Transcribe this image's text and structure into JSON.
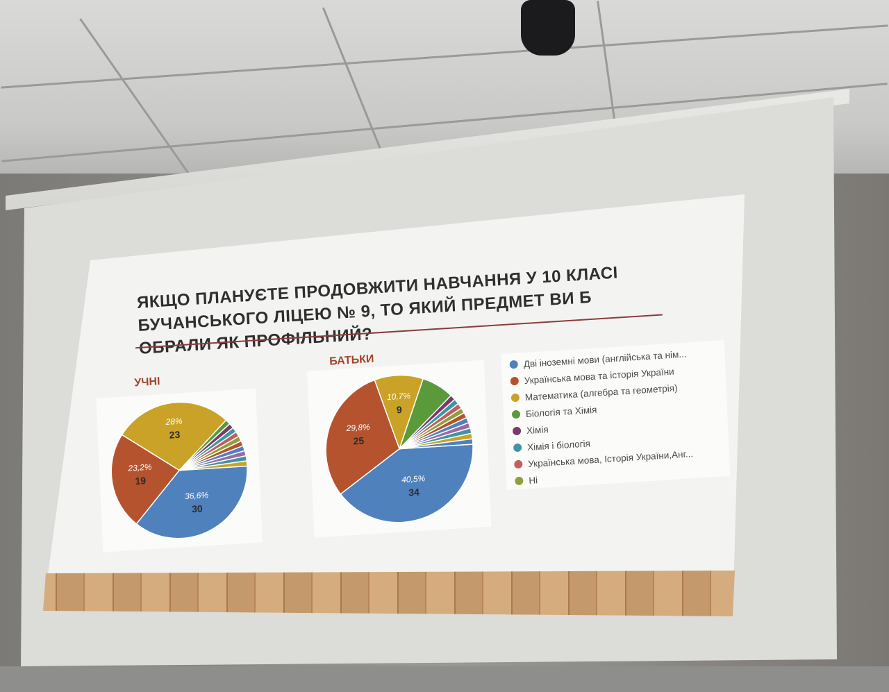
{
  "slide": {
    "title": "ЯКЩО ПЛАНУЄТЕ ПРОДОВЖИТИ НАВЧАННЯ У 10 КЛАСІ БУЧАНСЬКОГО ЛІЦЕЮ № 9, ТО ЯКИЙ ПРЕДМЕТ ВИ Б ОБРАЛИ ЯК ПРОФІЛЬНИЙ?",
    "title_color": "#2f2f2f",
    "accent_color": "#a0452c"
  },
  "chart_data": [
    {
      "type": "pie",
      "title": "УЧНІ",
      "start": "3 o'clock, clockwise",
      "slices": [
        {
          "name": "Дві іноземні мови (англійська та нім...",
          "value": 30,
          "label_value": "30",
          "label_percent": "36,6%",
          "color": "#4f81bd"
        },
        {
          "name": "Українська мова та історія України",
          "value": 19,
          "label_value": "19",
          "label_percent": "23,2%",
          "color": "#b5532f"
        },
        {
          "name": "Математика (алгебра та геометрія)",
          "value": 23,
          "label_value": "23",
          "label_percent": "28%",
          "color": "#c9a227"
        },
        {
          "name": "Біологія та Хімія",
          "value": 1,
          "color": "#5a9a3a"
        },
        {
          "name": "Хімія",
          "value": 1,
          "color": "#7a3a6a"
        },
        {
          "name": "Хімія і біологія",
          "value": 1,
          "color": "#3f95a5"
        },
        {
          "name": "Українська мова, Історія України,Анг...",
          "value": 1,
          "color": "#c0605e"
        },
        {
          "name": "Ні",
          "value": 1,
          "color": "#8fa03a"
        },
        {
          "value": 1,
          "color": "#b5532f"
        },
        {
          "value": 1,
          "color": "#4f81bd"
        },
        {
          "value": 1,
          "color": "#9a6aa8"
        },
        {
          "value": 1,
          "color": "#3f95a5"
        },
        {
          "value": 1,
          "color": "#c9a227"
        }
      ]
    },
    {
      "type": "pie",
      "title": "БАТЬКИ",
      "start": "3 o'clock, clockwise",
      "slices": [
        {
          "name": "Дві іноземні мови (англійська та нім...",
          "value": 34,
          "label_value": "34",
          "label_percent": "40,5%",
          "color": "#4f81bd"
        },
        {
          "name": "Українська мова та історія України",
          "value": 25,
          "label_value": "25",
          "label_percent": "29,8%",
          "color": "#b5532f"
        },
        {
          "name": "Математика (алгебра та геометрія)",
          "value": 9,
          "label_value": "9",
          "label_percent": "10,7%",
          "color": "#c9a227"
        },
        {
          "name": "Біологія та Хімія",
          "value": 6,
          "color": "#5a9a3a"
        },
        {
          "name": "Хімія",
          "value": 1,
          "color": "#7a3a6a"
        },
        {
          "name": "Хімія і біологія",
          "value": 1,
          "color": "#3f95a5"
        },
        {
          "name": "Українська мова, Історія України,Анг...",
          "value": 1,
          "color": "#c0605e"
        },
        {
          "name": "Ні",
          "value": 1,
          "color": "#8fa03a"
        },
        {
          "value": 1,
          "color": "#b5532f"
        },
        {
          "value": 1,
          "color": "#4f81bd"
        },
        {
          "value": 1,
          "color": "#9a6aa8"
        },
        {
          "value": 1,
          "color": "#3f95a5"
        },
        {
          "value": 1,
          "color": "#c9a227"
        },
        {
          "value": 1,
          "color": "#4f81bd"
        }
      ]
    }
  ],
  "legend": {
    "placement": "right",
    "items": [
      {
        "label": "Дві іноземні мови (англійська та нім...",
        "color": "#4f81bd"
      },
      {
        "label": "Українська мова та історія України",
        "color": "#b5532f"
      },
      {
        "label": "Математика (алгебра та геометрія)",
        "color": "#c9a227"
      },
      {
        "label": "Біологія та Хімія",
        "color": "#5a9a3a"
      },
      {
        "label": "Хімія",
        "color": "#7a3a6a"
      },
      {
        "label": "Хімія і біологія",
        "color": "#3f95a5"
      },
      {
        "label": "Українська мова, Історія України,Анг...",
        "color": "#c0605e"
      },
      {
        "label": "Ні",
        "color": "#8fa03a"
      }
    ]
  }
}
